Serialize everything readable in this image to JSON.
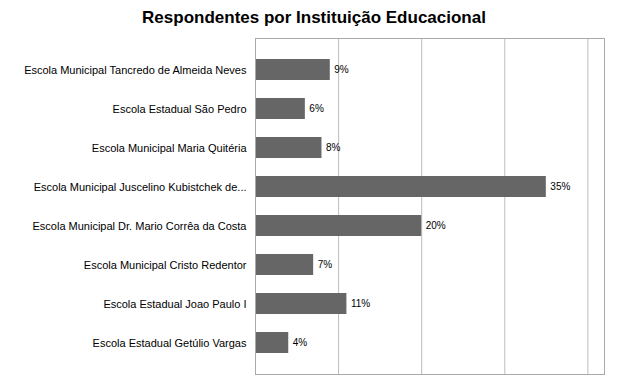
{
  "chart_data": {
    "type": "bar",
    "title": "Respondentes por Instituição Educacional",
    "orientation": "horizontal",
    "categories": [
      "Escola Municipal Tancredo de Almeida Neves",
      "Escola Estadual São Pedro",
      "Escola Municipal Maria Quitéria",
      "Escola Municipal Juscelino Kubistchek de...",
      "Escola Municipal Dr. Mario Corrêa da Costa",
      "Escola Municipal Cristo Redentor",
      "Escola Estadual Joao Paulo I",
      "Escola Estadual Getúlio Vargas"
    ],
    "values": [
      9,
      6,
      8,
      35,
      20,
      7,
      11,
      4
    ],
    "value_labels": [
      "9%",
      "6%",
      "8%",
      "35%",
      "20%",
      "7%",
      "11%",
      "4%"
    ],
    "data_labels": true,
    "color": "#666666",
    "xlim": [
      0,
      42
    ],
    "xticks": [
      10,
      20,
      30,
      40
    ],
    "grid": true,
    "tick_labels": "y"
  }
}
